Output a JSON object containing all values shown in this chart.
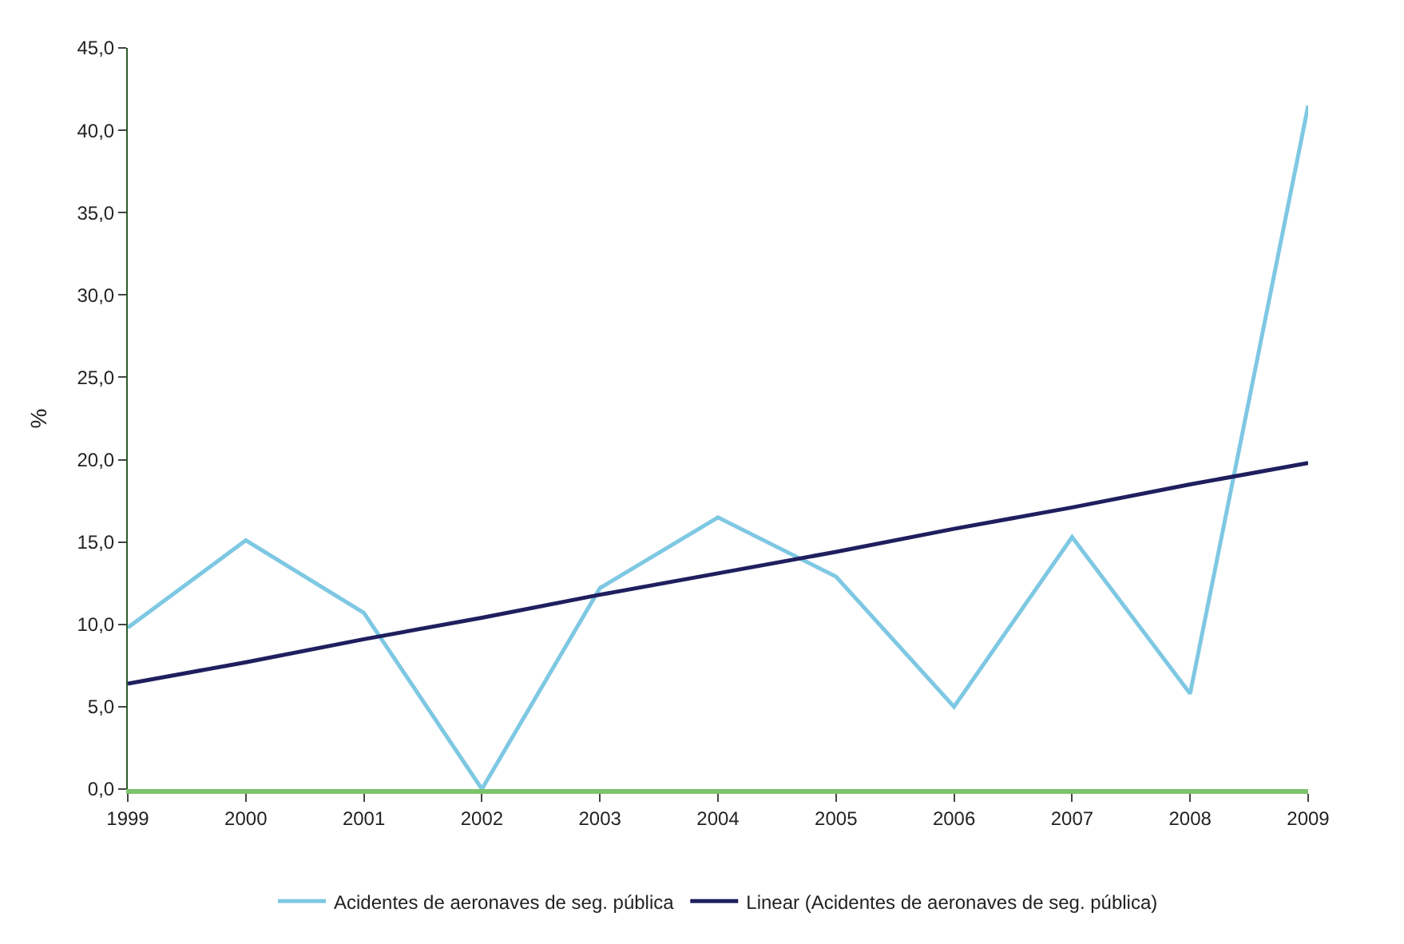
{
  "chart_data": {
    "type": "line",
    "ylabel": "%",
    "categories": [
      "1999",
      "2000",
      "2001",
      "2002",
      "2003",
      "2004",
      "2005",
      "2006",
      "2007",
      "2008",
      "2009"
    ],
    "series": [
      {
        "name": "Acidentes de aeronaves de seg. pública",
        "color": "#7ec8e3",
        "values": [
          9.8,
          15.1,
          10.7,
          0.0,
          12.2,
          16.5,
          12.9,
          5.0,
          15.3,
          5.8,
          41.5
        ]
      },
      {
        "name": "Linear (Acidentes de aeronaves de seg. pública)",
        "color": "#1f1f5f",
        "values": [
          6.4,
          7.7,
          9.1,
          10.4,
          11.8,
          13.1,
          14.4,
          15.8,
          17.1,
          18.5,
          19.8
        ]
      }
    ],
    "ylim": [
      0,
      45
    ],
    "yticks": [
      {
        "value": 0,
        "label": "0,0"
      },
      {
        "value": 5,
        "label": "5,0"
      },
      {
        "value": 10,
        "label": "10,0"
      },
      {
        "value": 15,
        "label": "15,0"
      },
      {
        "value": 20,
        "label": "20,0"
      },
      {
        "value": 25,
        "label": "25,0"
      },
      {
        "value": 30,
        "label": "30,0"
      },
      {
        "value": 35,
        "label": "35,0"
      },
      {
        "value": 40,
        "label": "40,0"
      },
      {
        "value": 45,
        "label": "45,0"
      }
    ],
    "legend": "bottom",
    "marker": "none",
    "line_style": "solid"
  }
}
